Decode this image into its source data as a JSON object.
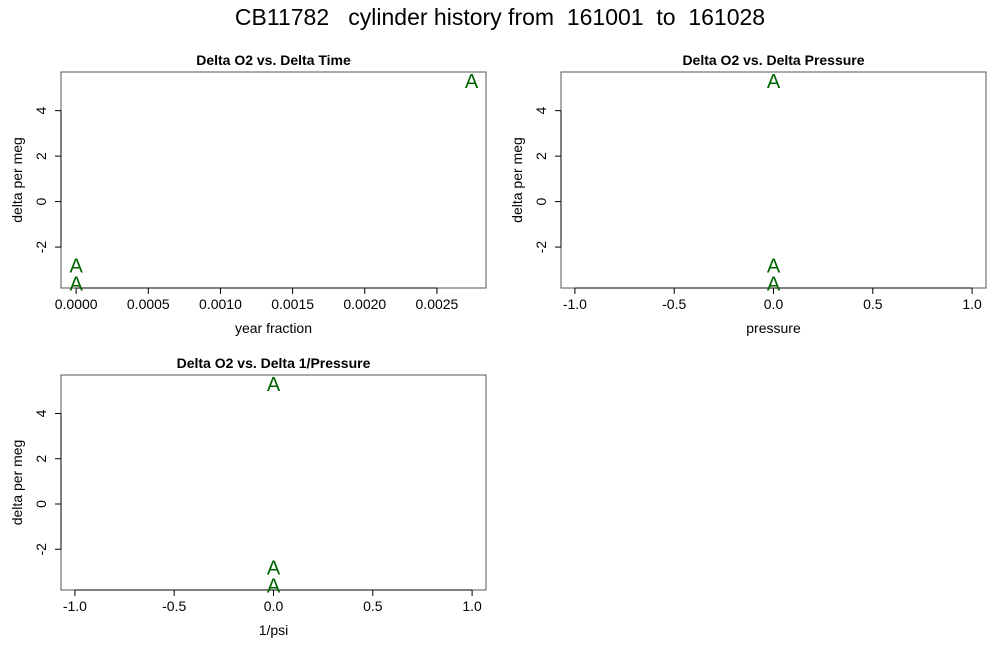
{
  "title": "CB11782   cylinder history from  161001  to  161028",
  "colors": {
    "points": "#006400",
    "axis": "#000000",
    "frame": "#555555"
  },
  "chart_data": [
    {
      "type": "scatter",
      "title": "Delta O2 vs. Delta Time",
      "xlabel": "year fraction",
      "ylabel": "delta per meg",
      "marker": "A",
      "xlim": [
        -0.000105,
        0.00284
      ],
      "ylim": [
        -3.8,
        5.7
      ],
      "xticks": [
        0,
        0.0005,
        0.001,
        0.0015,
        0.002,
        0.0025
      ],
      "xtick_labels": [
        "0.0000",
        "0.0005",
        "0.0010",
        "0.0015",
        "0.0020",
        "0.0025"
      ],
      "yticks": [
        -2,
        0,
        2,
        4
      ],
      "ytick_labels": [
        "-2",
        "0",
        "2",
        "4"
      ],
      "points": [
        {
          "x": 0.0,
          "y": -2.8
        },
        {
          "x": 0.0,
          "y": -3.6
        },
        {
          "x": 0.00274,
          "y": 5.3
        }
      ]
    },
    {
      "type": "scatter",
      "title": "Delta O2 vs. Delta Pressure",
      "xlabel": "pressure",
      "ylabel": "delta per meg",
      "marker": "A",
      "xlim": [
        -1.07,
        1.07
      ],
      "ylim": [
        -3.8,
        5.7
      ],
      "xticks": [
        -1,
        -0.5,
        0,
        0.5,
        1
      ],
      "xtick_labels": [
        "-1.0",
        "-0.5",
        "0.0",
        "0.5",
        "1.0"
      ],
      "yticks": [
        -2,
        0,
        2,
        4
      ],
      "ytick_labels": [
        "-2",
        "0",
        "2",
        "4"
      ],
      "points": [
        {
          "x": 0.0,
          "y": -2.8
        },
        {
          "x": 0.0,
          "y": -3.6
        },
        {
          "x": 0.0,
          "y": 5.3
        }
      ]
    },
    {
      "type": "scatter",
      "title": "Delta O2 vs. Delta 1/Pressure",
      "xlabel": "1/psi",
      "ylabel": "delta per meg",
      "marker": "A",
      "xlim": [
        -1.07,
        1.07
      ],
      "ylim": [
        -3.8,
        5.7
      ],
      "xticks": [
        -1,
        -0.5,
        0,
        0.5,
        1
      ],
      "xtick_labels": [
        "-1.0",
        "-0.5",
        "0.0",
        "0.5",
        "1.0"
      ],
      "yticks": [
        -2,
        0,
        2,
        4
      ],
      "ytick_labels": [
        "-2",
        "0",
        "2",
        "4"
      ],
      "points": [
        {
          "x": 0.0,
          "y": -2.8
        },
        {
          "x": 0.0,
          "y": -3.6
        },
        {
          "x": 0.0,
          "y": 5.3
        }
      ]
    }
  ]
}
